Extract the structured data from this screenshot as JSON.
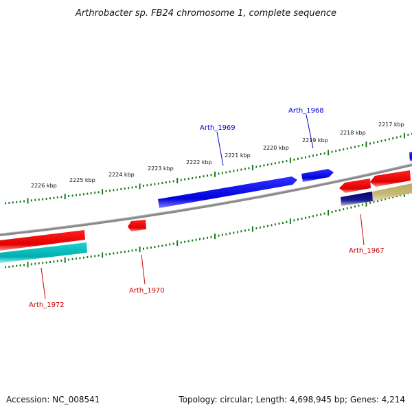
{
  "title": "Arthrobacter sp. FB24 chromosome 1, complete sequence",
  "accession": "Accession: NC_008541",
  "topology": "Topology: circular; Length: 4,698,945 bp; Genes: 4,214",
  "scale_labels": [
    "2226 kbp",
    "2225 kbp",
    "2224 kbp",
    "2223 kbp",
    "2222 kbp",
    "2221 kbp",
    "2220 kbp",
    "2219 kbp",
    "2218 kbp",
    "2217 kbp"
  ],
  "gene_labels": {
    "arth_1969": "Arth_1969",
    "arth_1968": "Arth_1968",
    "arth_1967": "Arth_1967",
    "arth_1970": "Arth_1970",
    "arth_1972": "Arth_1972"
  },
  "colors": {
    "forward_gene": "#0000dd",
    "reverse_gene": "#ee0000",
    "cyan_feature": "#00c0c0",
    "navy_feature": "#000080",
    "khaki_feature": "#c8b878",
    "backbone": "#888888",
    "tick": "#1a7a1a",
    "forward_label": "#0000cc",
    "reverse_label": "#cc0000"
  }
}
